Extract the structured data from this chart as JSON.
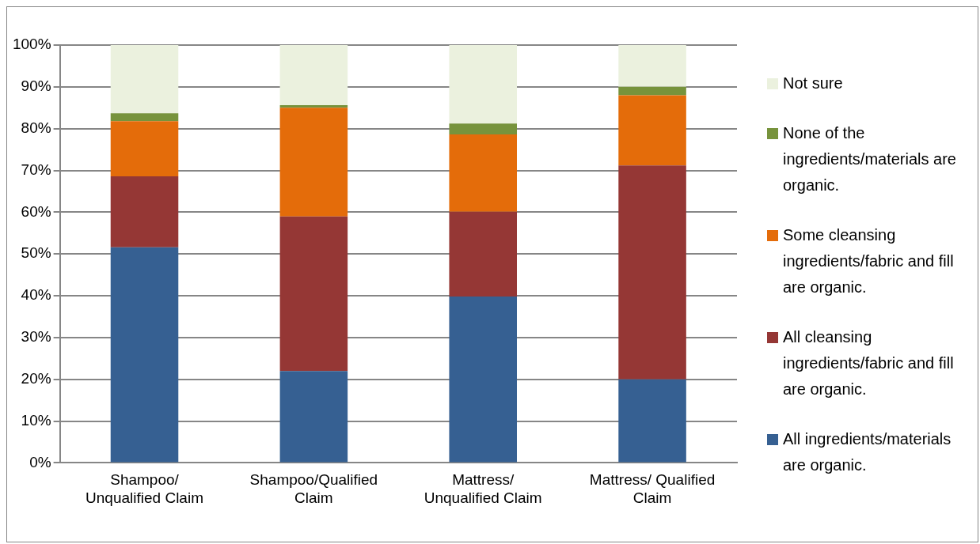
{
  "chart_data": {
    "type": "bar",
    "stacked": true,
    "categories": [
      "Shampoo/\nUnqualified Claim",
      "Shampoo/Qualified\nClaim",
      "Mattress/\nUnqualified Claim",
      "Mattress/ Qualified\nClaim"
    ],
    "series": [
      {
        "name": "All ingredients/materials are organic.",
        "color": "#366092",
        "values": [
          51.6,
          22.0,
          39.8,
          20.0
        ]
      },
      {
        "name": "All cleansing ingredients/fabric and fill are organic.",
        "color": "#953735",
        "values": [
          17.0,
          37.0,
          20.3,
          51.2
        ]
      },
      {
        "name": "Some cleansing ingredients/fabric and fill are organic.",
        "color": "#e46c0a",
        "values": [
          13.2,
          26.0,
          18.5,
          16.8
        ]
      },
      {
        "name": "None of the ingredients/materials are organic.",
        "color": "#77933c",
        "values": [
          1.9,
          0.6,
          2.6,
          2.0
        ]
      },
      {
        "name": "Not sure",
        "color": "#ebf1de",
        "values": [
          16.3,
          14.4,
          18.8,
          10.0
        ]
      }
    ],
    "ylim": [
      0,
      100
    ],
    "yticks": [
      {
        "value": 0,
        "label": "0%"
      },
      {
        "value": 10,
        "label": "10%"
      },
      {
        "value": 20,
        "label": "20%"
      },
      {
        "value": 30,
        "label": "30%"
      },
      {
        "value": 40,
        "label": "40%"
      },
      {
        "value": 50,
        "label": "50%"
      },
      {
        "value": 60,
        "label": "60%"
      },
      {
        "value": 70,
        "label": "70%"
      },
      {
        "value": 80,
        "label": "80%"
      },
      {
        "value": 90,
        "label": "90%"
      },
      {
        "value": 100,
        "label": "100%"
      }
    ],
    "grid": "y",
    "legend": "right"
  }
}
